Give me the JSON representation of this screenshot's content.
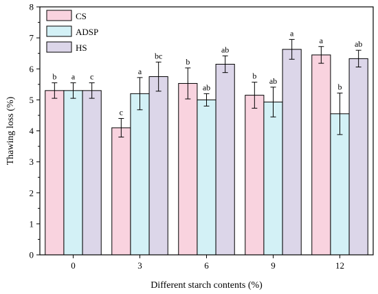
{
  "chart_data": {
    "type": "bar",
    "xlabel": "Different starch contents (%)",
    "ylabel": "Thawing loss (%)",
    "ylim": [
      0,
      8
    ],
    "yticks": [
      "0",
      "1",
      "2",
      "3",
      "4",
      "5",
      "6",
      "7",
      "8"
    ],
    "categories": [
      "0",
      "3",
      "6",
      "9",
      "12"
    ],
    "grid": false,
    "legend_position": "top-left",
    "series": [
      {
        "name": "CS",
        "color": "#f9d3df",
        "values": [
          5.3,
          4.1,
          5.53,
          5.15,
          6.45
        ],
        "errors": [
          0.25,
          0.3,
          0.5,
          0.42,
          0.27
        ],
        "labels": [
          "b",
          "c",
          "b",
          "b",
          "a"
        ]
      },
      {
        "name": "ADSP",
        "color": "#d3f1f6",
        "values": [
          5.3,
          5.2,
          5.0,
          4.93,
          4.55
        ],
        "errors": [
          0.25,
          0.52,
          0.2,
          0.48,
          0.67
        ],
        "labels": [
          "a",
          "a",
          "ab",
          "ab",
          "b"
        ]
      },
      {
        "name": "HS",
        "color": "#dcd6e9",
        "values": [
          5.3,
          5.75,
          6.15,
          6.63,
          6.33
        ],
        "errors": [
          0.25,
          0.47,
          0.27,
          0.32,
          0.27
        ],
        "labels": [
          "c",
          "bc",
          "ab",
          "a",
          "ab"
        ]
      }
    ]
  }
}
